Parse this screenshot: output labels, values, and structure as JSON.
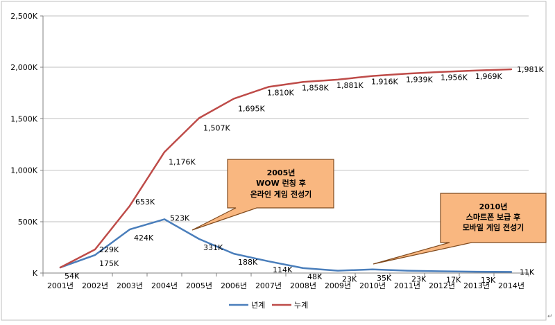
{
  "chart_data": {
    "type": "line",
    "categories": [
      "2001년",
      "2002년",
      "2003년",
      "2004년",
      "2005년",
      "2006년",
      "2007년",
      "2008년",
      "2009년",
      "2010년",
      "2011년",
      "2012년",
      "2013년",
      "2014년"
    ],
    "ylim": [
      0,
      2500
    ],
    "yticks": [
      0,
      500,
      1000,
      1500,
      2000,
      2500
    ],
    "ytick_labels": [
      "K",
      "500K",
      "1,000K",
      "1,500K",
      "2,000K",
      "2,500K"
    ],
    "grid": true,
    "legend_position": "bottom",
    "series": [
      {
        "name": "년계",
        "color": "#4a7ebb",
        "values": [
          54,
          175,
          424,
          523,
          331,
          188,
          114,
          48,
          23,
          35,
          23,
          17,
          13,
          11
        ],
        "labels": [
          "54K",
          "175K",
          "424K",
          "523K",
          "331K",
          "188K",
          "114K",
          "48K",
          "23K",
          "35K",
          "23K",
          "17K",
          "13K",
          "11K"
        ]
      },
      {
        "name": "누계",
        "color": "#be4b48",
        "values": [
          54,
          229,
          653,
          1176,
          1507,
          1695,
          1810,
          1858,
          1881,
          1916,
          1939,
          1956,
          1969,
          1981
        ],
        "labels": [
          "",
          "229K",
          "653K",
          "1,176K",
          "1,507K",
          "1,695K",
          "1,810K",
          "1,858K",
          "1,881K",
          "1,916K",
          "1,939K",
          "1,956K",
          "1,969K",
          "1,981K"
        ]
      }
    ],
    "annotations": [
      {
        "lines": [
          "2005년",
          "WOW 런칭 후",
          "온라인 게임 전성기"
        ],
        "points_to": "2005년"
      },
      {
        "lines": [
          "2010년",
          "스마트폰 보급 후",
          "모바일 게임 전성기"
        ],
        "points_to": "2010년"
      }
    ],
    "callout_fill": "#f9b780"
  },
  "page": {
    "edge_mark": "↵"
  }
}
